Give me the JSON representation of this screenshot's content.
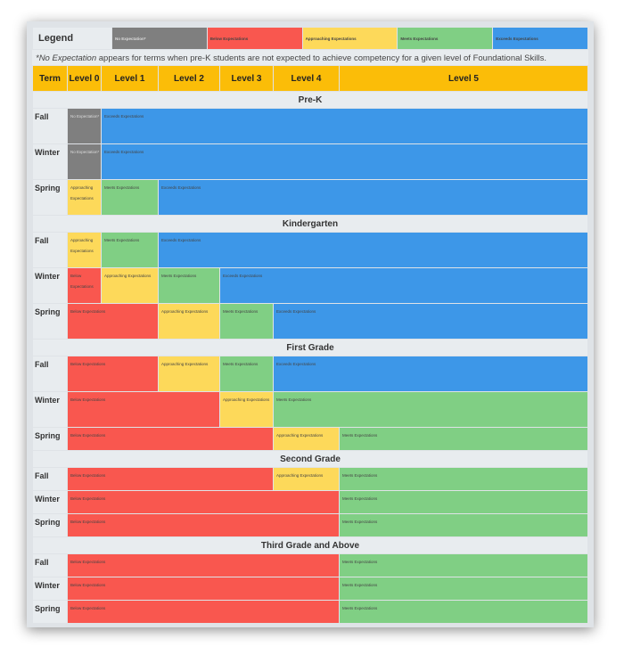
{
  "legend": {
    "title": "Legend",
    "items": [
      {
        "label": "No Expectation*",
        "color": "#7f7f7f"
      },
      {
        "label": "Below Expectations",
        "color": "#f9574f"
      },
      {
        "label": "Approaching Expectations",
        "color": "#fdd95a"
      },
      {
        "label": "Meets Expectations",
        "color": "#80cf84"
      },
      {
        "label": "Exceeds Expectations",
        "color": "#3d97e8"
      }
    ]
  },
  "note": {
    "emphasis": "*No Expectation",
    "text": " appears for terms when pre-K students are not expected to achieve competency for a given level of Foundational Skills."
  },
  "header": [
    "Term",
    "Level 0",
    "Level 1",
    "Level 2",
    "Level 3",
    "Level 4",
    "Level 5"
  ],
  "labels": {
    "no": "No Expectation*",
    "below": "Below Expectations",
    "approaching": "Approaching Expectations",
    "meets": "Meets Expectations",
    "exceeds": "Exceeds Expectations"
  },
  "sections": [
    {
      "title": "Pre-K",
      "terms": [
        "Fall",
        "Winter",
        "Spring"
      ]
    },
    {
      "title": "Kindergarten",
      "terms": [
        "Fall",
        "Winter",
        "Spring"
      ]
    },
    {
      "title": "First Grade",
      "terms": [
        "Fall",
        "Winter",
        "Spring"
      ]
    },
    {
      "title": "Second Grade",
      "terms": [
        "Fall",
        "Winter",
        "Spring"
      ]
    },
    {
      "title": "Third Grade and Above",
      "terms": [
        "Fall",
        "Winter",
        "Spring"
      ]
    }
  ]
}
